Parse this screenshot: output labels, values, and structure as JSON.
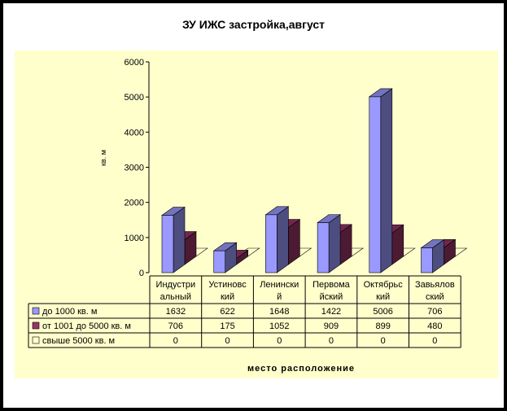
{
  "chart_data": {
    "type": "bar",
    "title": "ЗУ ИЖС застройка,август",
    "xlabel": "место расположение",
    "ylabel": "кв. м",
    "ylim": [
      0,
      6000
    ],
    "yticks": [
      0,
      1000,
      2000,
      3000,
      4000,
      5000,
      6000
    ],
    "categories": [
      [
        "Индустри",
        "альный"
      ],
      [
        "Устиновс",
        "кий"
      ],
      [
        "Ленински",
        "й"
      ],
      [
        "Первома",
        "йский"
      ],
      [
        "Октябрьс",
        "кий"
      ],
      [
        "Завьялов",
        "ский"
      ]
    ],
    "series": [
      {
        "name": "до 1000 кв. м",
        "values": [
          1632,
          622,
          1648,
          1422,
          5006,
          706
        ],
        "color": "#9999ff"
      },
      {
        "name": "от 1001 до 5000 кв. м",
        "values": [
          706,
          175,
          1052,
          909,
          899,
          480
        ],
        "color": "#993366"
      },
      {
        "name": "свыше 5000 кв. м",
        "values": [
          0,
          0,
          0,
          0,
          0,
          0
        ],
        "color": "#ffffcc"
      }
    ],
    "table": true,
    "grid": false
  }
}
